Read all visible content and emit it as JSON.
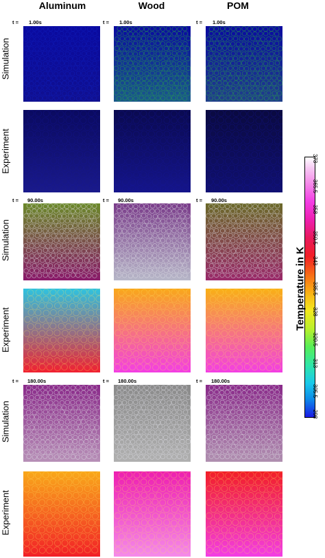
{
  "columns": [
    "Aluminum",
    "Wood",
    "POM"
  ],
  "rows": [
    "Simulation",
    "Experiment",
    "Simulation",
    "Experiment",
    "Simulation",
    "Experiment"
  ],
  "time_prefix": "t =",
  "times": [
    "1.00s",
    "90.00s",
    "180.00s"
  ],
  "colorbar": {
    "title": "Temperature in K",
    "ticks": [
      "298",
      "305.5",
      "313",
      "320.5",
      "328",
      "335.5",
      "343",
      "350.5",
      "358",
      "365.5",
      "373"
    ]
  },
  "colors": {
    "cold": "#1a1ae6",
    "hot": "#ffffff",
    "background": "#ffffff"
  }
}
